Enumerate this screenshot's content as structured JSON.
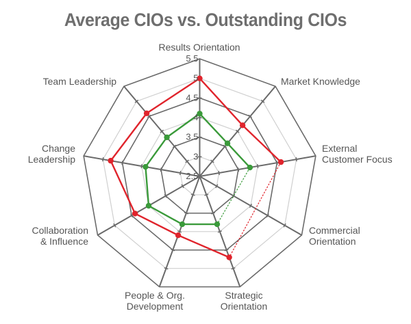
{
  "title": "Average CIOs vs. Outstanding CIOs",
  "colors": {
    "outstanding": "#e0242c",
    "average": "#3a9a3a",
    "axis": "#6a6a6a",
    "ring_major": "#6a6a6a",
    "ring_minor": "#cfcfcf",
    "text": "#555555"
  },
  "chart_data": {
    "type": "radar",
    "title": "Average CIOs vs. Outstanding CIOs",
    "categories": [
      "Results Orientation",
      "Market Knowledge",
      "External Customer Focus",
      "Commercial Orientation",
      "Strategic Orientation",
      "People & Org. Development",
      "Collaboration & Influence",
      "Change Leadership",
      "Team Leadership"
    ],
    "category_label_lines": [
      [
        "Results Orientation"
      ],
      [
        "Market Knowledge"
      ],
      [
        "External",
        "Customer Focus"
      ],
      [
        "Commercial",
        "Orientation"
      ],
      [
        "Strategic",
        "Orientation"
      ],
      [
        "People & Org.",
        "Development"
      ],
      [
        "Collaboration",
        "& Influence"
      ],
      [
        "Change",
        "Leadership"
      ],
      [
        "Team Leadership"
      ]
    ],
    "series": [
      {
        "name": "Outstanding CIOs",
        "color": "#e0242c",
        "values": [
          5.0,
          4.2,
          4.6,
          null,
          4.7,
          4.1,
          4.4,
          4.8,
          4.6
        ]
      },
      {
        "name": "Average CIOs",
        "color": "#3a9a3a",
        "values": [
          4.1,
          3.6,
          3.8,
          null,
          3.8,
          3.8,
          4.0,
          3.9,
          3.8
        ]
      }
    ],
    "radial_range": [
      2.5,
      5.5
    ],
    "radial_ticks": [
      "2.5",
      "3",
      "3.5",
      "4",
      "4.5",
      "5",
      "5.5"
    ],
    "missing_value_style": "dashed connector",
    "legend": "none",
    "grid": true
  }
}
